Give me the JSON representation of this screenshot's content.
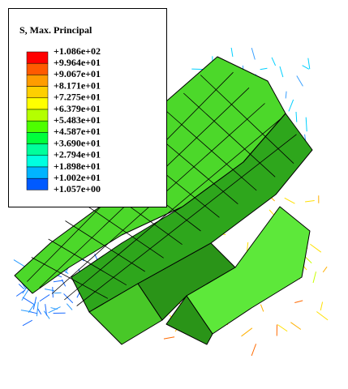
{
  "legend": {
    "title": "S, Max. Principal",
    "labels": [
      "+1.086e+02",
      "+9.964e+01",
      "+9.067e+01",
      "+8.171e+01",
      "+7.275e+01",
      "+6.379e+01",
      "+5.483e+01",
      "+4.587e+01",
      "+3.690e+01",
      "+2.794e+01",
      "+1.898e+01",
      "+1.002e+01",
      "+1.057e+00"
    ],
    "colors": [
      "#ff0000",
      "#ff5a00",
      "#ff9c00",
      "#ffcf00",
      "#ffff00",
      "#b4ff00",
      "#4dff00",
      "#00ff3c",
      "#00ff9c",
      "#00ffe0",
      "#00b4ff",
      "#005aff",
      "#0000ff"
    ]
  }
}
